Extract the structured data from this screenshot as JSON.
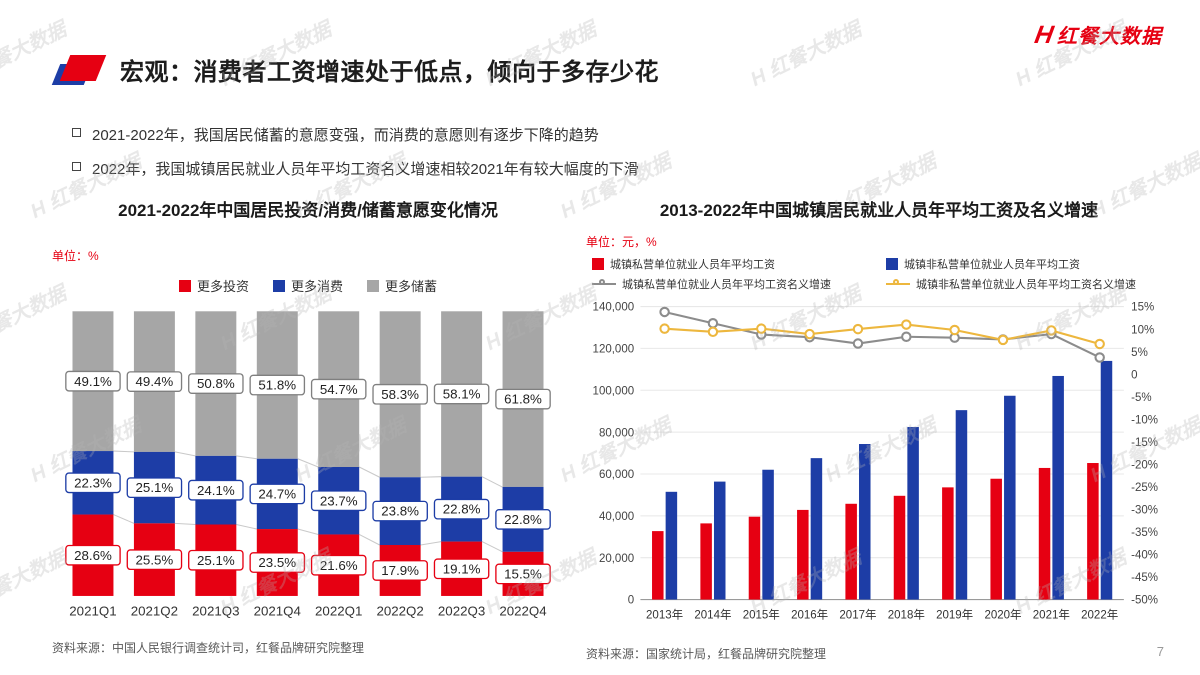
{
  "logo": {
    "text": "红餐大数据",
    "h_glyph": "H",
    "color": "#e60012"
  },
  "header": {
    "title": "宏观：消费者工资增速处于低点，倾向于多存少花"
  },
  "bullets": [
    "2021-2022年，我国居民储蓄的意愿变强，而消费的意愿则有逐步下降的趋势",
    "2022年，我国城镇居民就业人员年平均工资名义增速相较2021年有较大幅度的下滑"
  ],
  "watermark": {
    "text": "H 红餐大数据"
  },
  "page_number": "7",
  "colors": {
    "red": "#e60012",
    "blue": "#1d3da6",
    "gray": "#a6a6a6",
    "yellow": "#edb73e",
    "line_gray": "#8c8c8c"
  },
  "chart_data": [
    {
      "type": "bar",
      "stacked": true,
      "title": "2021-2022年中国居民投资/消费/储蓄意愿变化情况",
      "unit_label": "单位：%",
      "categories": [
        "2021Q1",
        "2021Q2",
        "2021Q3",
        "2021Q4",
        "2022Q1",
        "2022Q2",
        "2022Q3",
        "2022Q4"
      ],
      "series": [
        {
          "name": "更多投资",
          "color": "#e60012",
          "label_border": "#e60012",
          "values": [
            28.6,
            25.5,
            25.1,
            23.5,
            21.6,
            17.9,
            19.1,
            15.5
          ]
        },
        {
          "name": "更多消费",
          "color": "#1d3da6",
          "label_border": "#1d3da6",
          "values": [
            22.3,
            25.1,
            24.1,
            24.7,
            23.7,
            23.8,
            22.8,
            22.8
          ]
        },
        {
          "name": "更多储蓄",
          "color": "#a6a6a6",
          "label_border": "#7f7f7f",
          "values": [
            49.1,
            49.4,
            50.8,
            51.8,
            54.7,
            58.3,
            58.1,
            61.8
          ]
        }
      ],
      "ylim": [
        0,
        100
      ],
      "grid": false,
      "legend_position": "top",
      "source": "资料来源：中国人民银行调查统计司，红餐品牌研究院整理"
    },
    {
      "type": "bar+line",
      "title": "2013-2022年中国城镇居民就业人员年平均工资及名义增速",
      "unit_label": "单位：元，%",
      "categories": [
        "2013年",
        "2014年",
        "2015年",
        "2016年",
        "2017年",
        "2018年",
        "2019年",
        "2020年",
        "2021年",
        "2022年"
      ],
      "bar_series": [
        {
          "name": "城镇私营单位就业人员年平均工资",
          "color": "#e60012",
          "values": [
            32706,
            36390,
            39589,
            42833,
            45761,
            49575,
            53604,
            57727,
            62884,
            65237
          ]
        },
        {
          "name": "城镇非私营单位就业人员年平均工资",
          "color": "#1d3da6",
          "values": [
            51483,
            56360,
            62029,
            67569,
            74318,
            82461,
            90501,
            97379,
            106837,
            114029
          ]
        }
      ],
      "line_series": [
        {
          "name": "城镇私营单位就业人员年平均工资名义增速",
          "color": "#8c8c8c",
          "values": [
            13.8,
            11.3,
            8.8,
            8.2,
            6.8,
            8.3,
            8.1,
            7.7,
            8.9,
            3.7
          ]
        },
        {
          "name": "城镇非私营单位就业人员年平均工资名义增速",
          "color": "#edb73e",
          "values": [
            10.1,
            9.4,
            10.1,
            8.9,
            10.0,
            11.0,
            9.8,
            7.6,
            9.7,
            6.7
          ]
        }
      ],
      "left_axis": {
        "min": 0,
        "max": 140000,
        "step": 20000
      },
      "right_axis": {
        "min": -50,
        "max": 15,
        "step": 5
      },
      "grid": true,
      "legend_position": "top",
      "source": "资料来源：国家统计局，红餐品牌研究院整理"
    }
  ]
}
